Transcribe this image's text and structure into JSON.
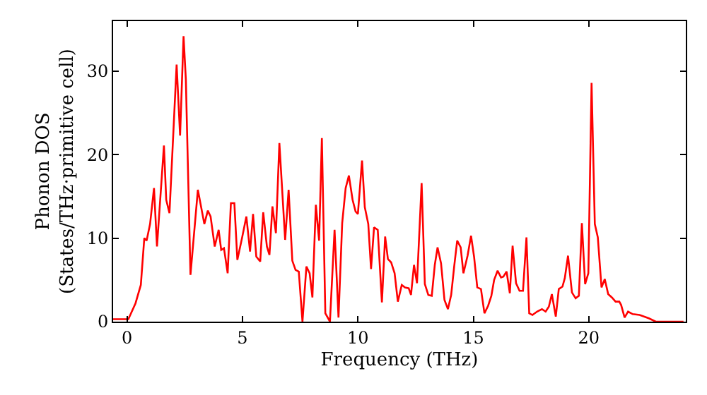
{
  "chart_data": {
    "type": "line",
    "xlabel": "Frequency (THz)",
    "ylabel": "Phonon DOS\n(States/THz·primitive cell)",
    "xlim": [
      -0.6,
      24.2
    ],
    "ylim": [
      0,
      36
    ],
    "xticks": [
      0,
      5,
      10,
      15,
      20
    ],
    "yticks": [
      0,
      10,
      20,
      30
    ],
    "marker": "none",
    "line_style": "solid",
    "series": [
      {
        "color": "#ff0000",
        "x": [
          -0.6,
          0.06,
          0.37,
          0.6,
          0.75,
          0.85,
          1.0,
          1.17,
          1.3,
          1.6,
          1.7,
          1.84,
          2.15,
          2.3,
          2.45,
          2.55,
          2.75,
          3.07,
          3.35,
          3.5,
          3.62,
          3.8,
          3.97,
          4.08,
          4.2,
          4.36,
          4.5,
          4.65,
          4.78,
          4.98,
          5.17,
          5.33,
          5.46,
          5.6,
          5.77,
          5.9,
          6.06,
          6.17,
          6.3,
          6.45,
          6.6,
          6.85,
          7.0,
          7.16,
          7.3,
          7.44,
          7.6,
          7.77,
          7.91,
          8.03,
          8.18,
          8.32,
          8.44,
          8.59,
          8.79,
          8.99,
          9.16,
          9.32,
          9.47,
          9.61,
          9.77,
          9.9,
          10.0,
          10.18,
          10.3,
          10.45,
          10.57,
          10.7,
          10.86,
          11.04,
          11.18,
          11.3,
          11.44,
          11.59,
          11.73,
          11.9,
          12.04,
          12.2,
          12.3,
          12.43,
          12.56,
          12.76,
          12.9,
          13.05,
          13.2,
          13.33,
          13.45,
          13.6,
          13.75,
          13.9,
          14.04,
          14.17,
          14.3,
          14.45,
          14.57,
          14.75,
          14.9,
          15.03,
          15.17,
          15.33,
          15.48,
          15.64,
          15.78,
          15.9,
          16.05,
          16.2,
          16.3,
          16.44,
          16.58,
          16.7,
          16.85,
          17.0,
          17.15,
          17.3,
          17.42,
          17.56,
          17.76,
          17.97,
          18.13,
          18.27,
          18.4,
          18.57,
          18.7,
          18.86,
          18.96,
          19.1,
          19.27,
          19.43,
          19.57,
          19.7,
          19.84,
          19.98,
          20.12,
          20.26,
          20.39,
          20.55,
          20.69,
          20.84,
          21.0,
          21.16,
          21.32,
          21.4,
          21.55,
          21.7,
          21.9,
          22.2,
          22.6,
          22.9,
          24.1
        ],
        "values": [
          0.3,
          0.3,
          2.2,
          4.4,
          10,
          9.7,
          11.7,
          16,
          9,
          21.1,
          14.6,
          13,
          30.8,
          22.3,
          34.2,
          29,
          5.6,
          15.8,
          11.7,
          13.3,
          12.6,
          9,
          11,
          8.6,
          8.8,
          5.8,
          14.2,
          14.2,
          7.4,
          10,
          12.6,
          8.4,
          12.9,
          7.8,
          7.2,
          13.1,
          9,
          8,
          13.8,
          10.6,
          21.4,
          9.8,
          15.8,
          7.3,
          6.2,
          6,
          0,
          6.6,
          5.8,
          2.9,
          14,
          9.7,
          22,
          1,
          0,
          11,
          0.5,
          11.8,
          16,
          17.5,
          14.6,
          13.2,
          12.9,
          19.3,
          13.7,
          11.7,
          6.3,
          11.3,
          11,
          2.3,
          10.2,
          7.5,
          7.1,
          5.8,
          2.4,
          4.4,
          4.1,
          4,
          3.2,
          6.8,
          4.6,
          16.6,
          4.5,
          3.2,
          3.1,
          6.8,
          8.9,
          7,
          2.6,
          1.5,
          3.2,
          6.6,
          9.7,
          8.9,
          5.8,
          7.9,
          10.3,
          7.8,
          4.1,
          3.9,
          1.0,
          1.9,
          3.1,
          5,
          6.1,
          5.3,
          5.4,
          6,
          3.4,
          9.1,
          4.6,
          3.7,
          3.7,
          10.1,
          1.0,
          0.8,
          1.2,
          1.5,
          1.2,
          1.8,
          3.3,
          0.6,
          3.9,
          4.2,
          5.2,
          7.9,
          3.5,
          2.8,
          3.1,
          11.8,
          4.5,
          5.8,
          28.6,
          11.7,
          10.1,
          4.1,
          5.1,
          3.3,
          2.9,
          2.4,
          2.4,
          2.0,
          0.5,
          1.2,
          0.9,
          0.8,
          0.4,
          0,
          0
        ]
      }
    ]
  }
}
